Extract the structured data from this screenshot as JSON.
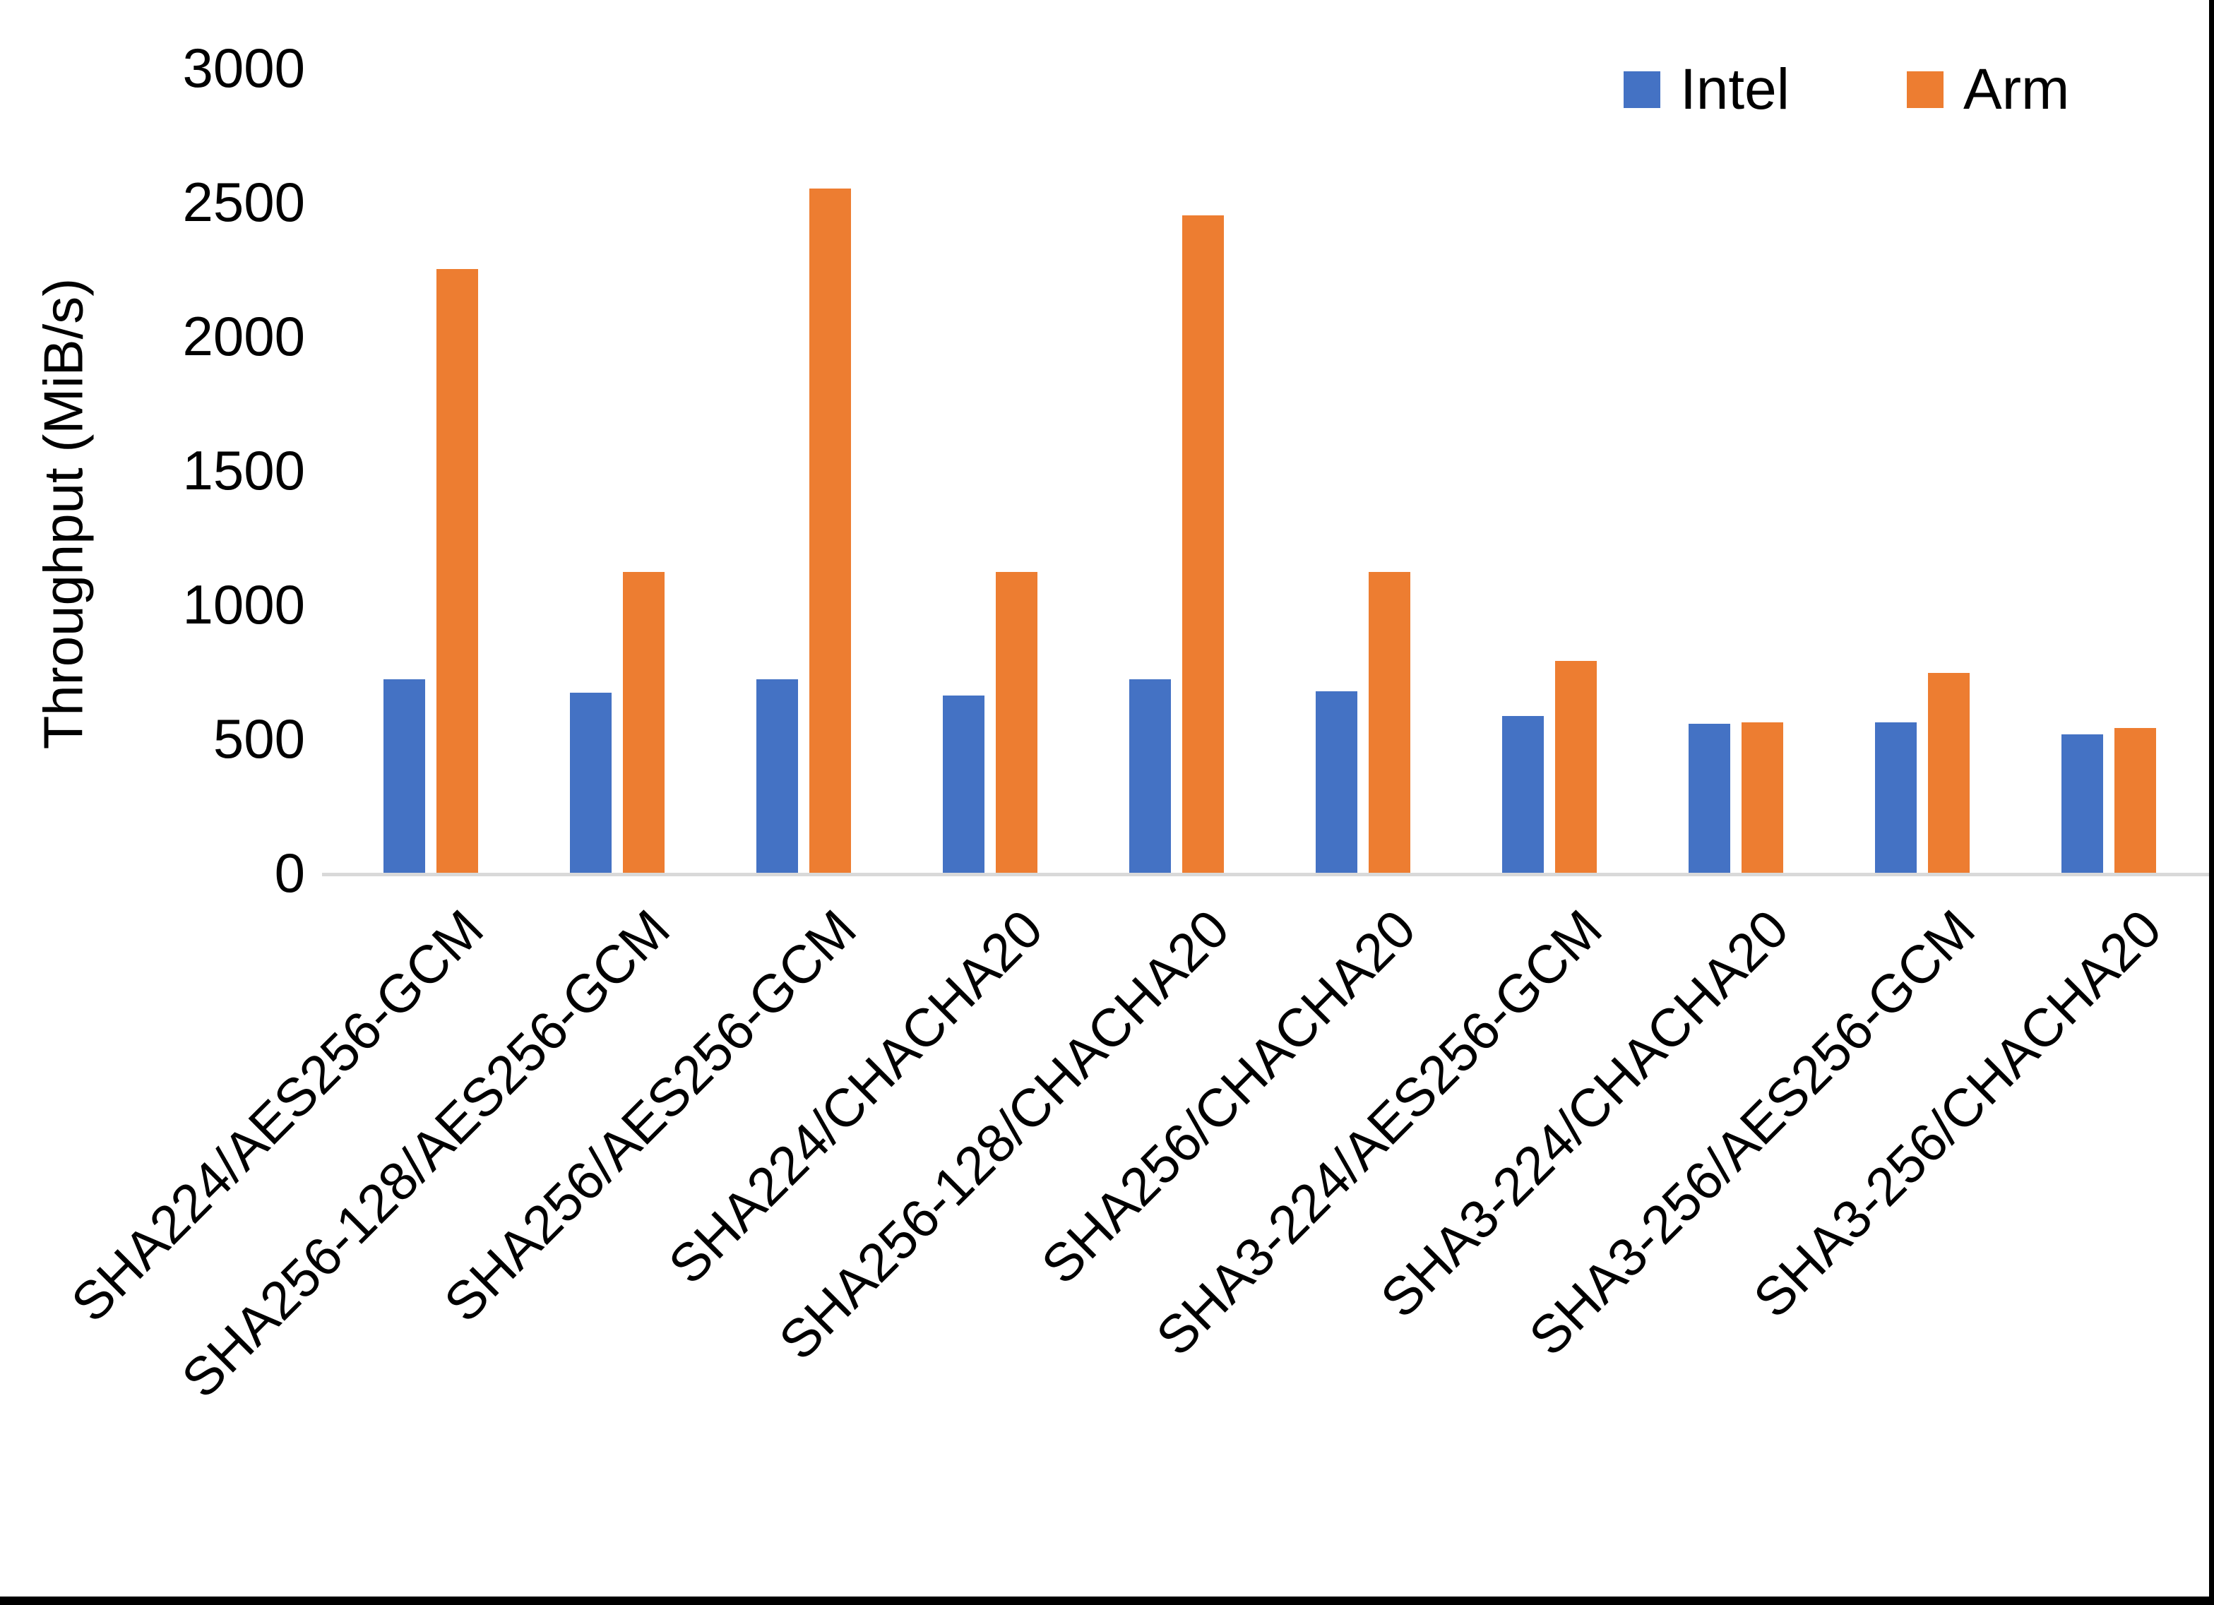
{
  "chart_data": {
    "type": "bar",
    "title": "",
    "xlabel": "",
    "ylabel": "Throughput (MiB/s)",
    "ylim": [
      0,
      3000
    ],
    "yticks": [
      0,
      500,
      1000,
      1500,
      2000,
      2500,
      3000
    ],
    "grid": false,
    "legend_position": "top-right",
    "categories": [
      "SHA224/AES256-GCM",
      "SHA256-128/AES256-GCM",
      "SHA256/AES256-GCM",
      "SHA224/CHACHA20",
      "SHA256-128/CHACHA20",
      "SHA256/CHACHA20",
      "SHA3-224/AES256-GCM",
      "SHA3-224/CHACHA20",
      "SHA3-256/AES256-GCM",
      "SHA3-256/CHACHA20"
    ],
    "series": [
      {
        "name": "Intel",
        "color": "#4472C4",
        "values": [
          720,
          670,
          720,
          660,
          720,
          675,
          585,
          555,
          560,
          515
        ]
      },
      {
        "name": "Arm",
        "color": "#ED7D31",
        "values": [
          2250,
          1120,
          2550,
          1120,
          2450,
          1120,
          790,
          560,
          745,
          540
        ]
      }
    ]
  },
  "colors": {
    "axis_line": "#d9d9d9",
    "text": "#000000"
  }
}
